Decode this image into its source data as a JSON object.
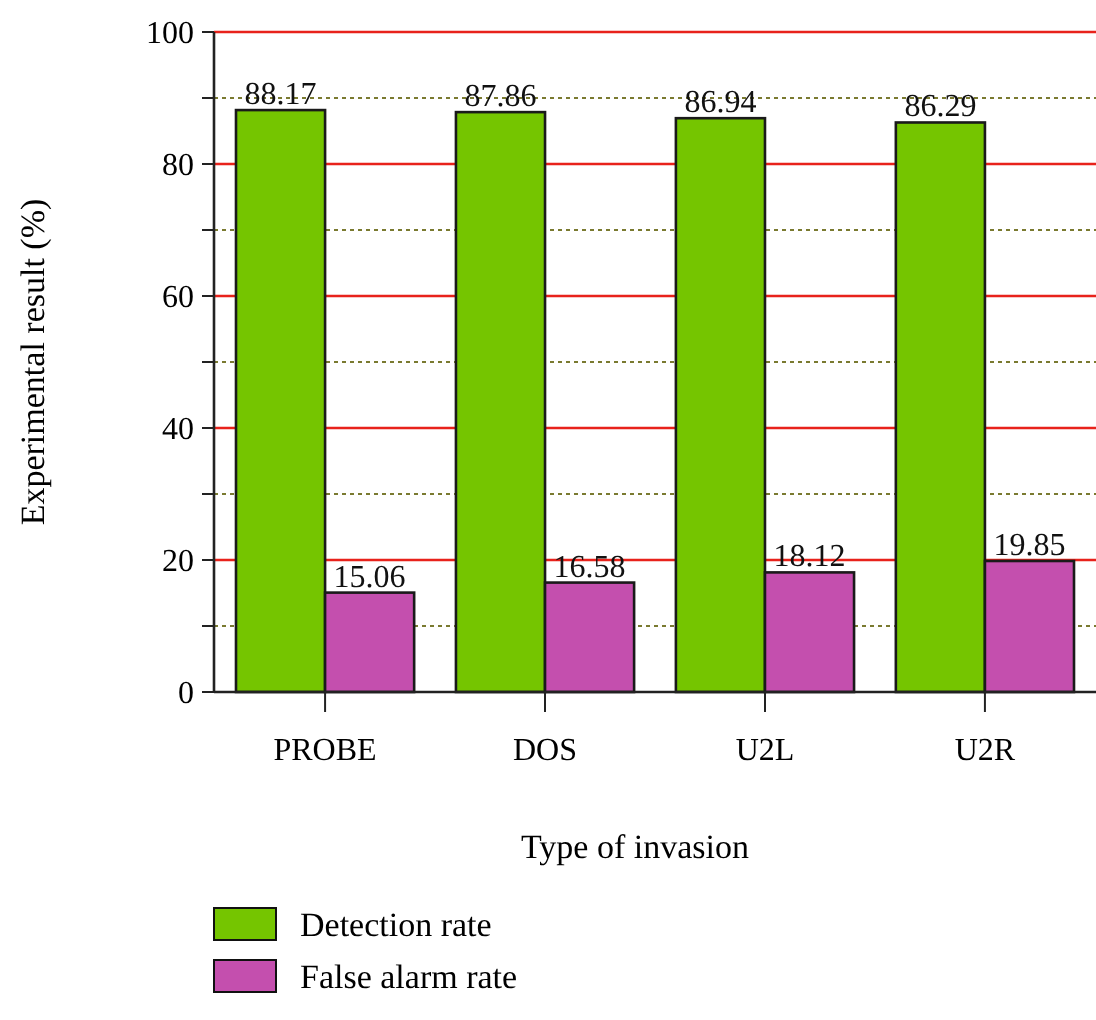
{
  "chart_data": {
    "type": "bar",
    "xlabel": "Type of invasion",
    "ylabel": "Experimental result (%)",
    "categories": [
      "PROBE",
      "DOS",
      "U2L",
      "U2R"
    ],
    "series": [
      {
        "name": "Detection rate",
        "color": "#75c500",
        "values": [
          88.17,
          87.86,
          86.94,
          86.29
        ]
      },
      {
        "name": "False alarm rate",
        "color": "#c44fae",
        "values": [
          15.06,
          16.58,
          18.12,
          19.85
        ]
      }
    ],
    "ylim": [
      0,
      100
    ],
    "yticks": [
      0,
      {
        "value": 10,
        "label": null
      },
      20,
      {
        "value": 30,
        "label": null
      },
      40,
      {
        "value": 50,
        "label": null
      },
      60,
      {
        "value": 70,
        "label": null
      },
      80,
      {
        "value": 90,
        "label": null
      },
      100
    ],
    "grid": "y",
    "data_labels": true,
    "legend": "bottom"
  }
}
